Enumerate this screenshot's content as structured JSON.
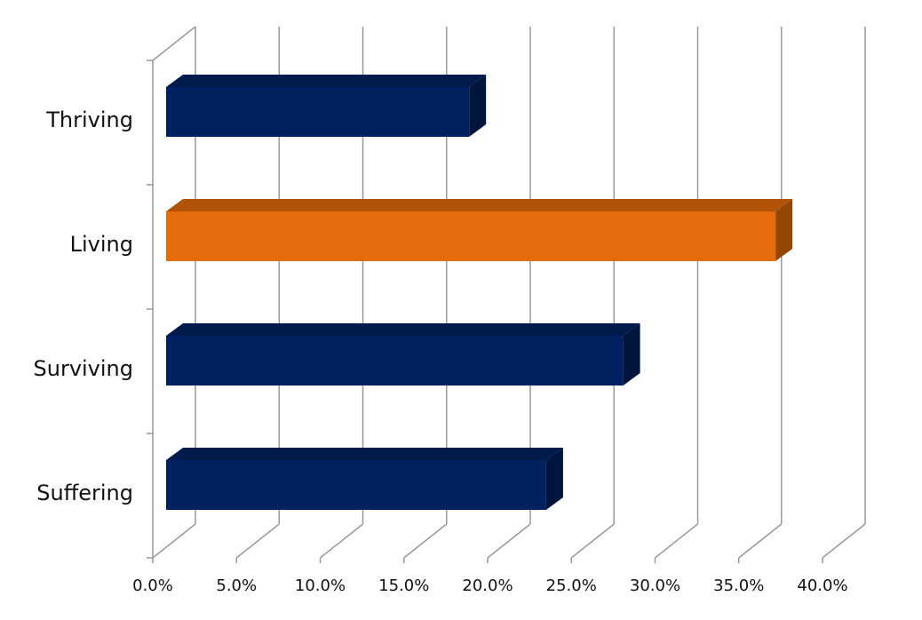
{
  "chart_data": {
    "type": "bar",
    "orientation": "horizontal",
    "three_d": true,
    "categories": [
      "Thriving",
      "Living",
      "Surviving",
      "Suffering"
    ],
    "values": [
      18.1,
      36.4,
      27.3,
      22.7
    ],
    "colors": [
      "#00215f",
      "#e46c0a",
      "#00215f",
      "#00215f"
    ],
    "xlim": [
      0,
      40
    ],
    "xticks": [
      {
        "value": 0,
        "label": "0.0%"
      },
      {
        "value": 5,
        "label": "5.0%"
      },
      {
        "value": 10,
        "label": "10.0%"
      },
      {
        "value": 15,
        "label": "15.0%"
      },
      {
        "value": 20,
        "label": "20.0%"
      },
      {
        "value": 25,
        "label": "25.0%"
      },
      {
        "value": 30,
        "label": "30.0%"
      },
      {
        "value": 35,
        "label": "35.0%"
      },
      {
        "value": 40,
        "label": "40.0%"
      }
    ],
    "grid": true
  }
}
